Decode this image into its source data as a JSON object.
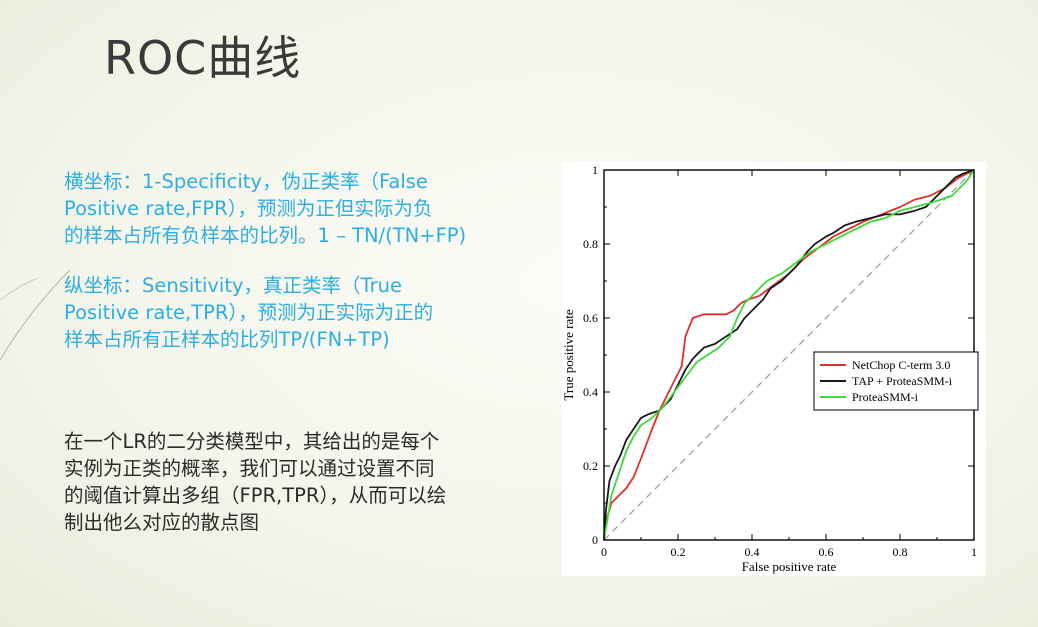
{
  "slide": {
    "title": "ROC曲线",
    "paragraph1": "横坐标：1-Specificity，伪正类率（False Positive rate,FPR），预测为正但实际为负的样本占所有负样本的比例。1 – TN/(TN+FP)",
    "paragraph1_lines": [
      "横坐标：1-Specificity，伪正类率（False",
      "Positive rate,FPR），预测为正但实际为负",
      "的样本占所有负样本的比列。1 – TN/(TN+FP)"
    ],
    "paragraph2_lines": [
      "纵坐标：Sensitivity，真正类率（True",
      "Positive rate,TPR），预测为正实际为正的",
      "样本占所有正样本的比列TP/(FN+TP)"
    ],
    "paragraph3_lines": [
      "在一个LR的二分类模型中，其给出的是每个",
      "实例为正类的概率，我们可以通过设置不同",
      "的阈值计算出多组（FPR,TPR），从而可以绘",
      "制出他么对应的散点图"
    ],
    "colors": {
      "accent_text": "#2eaee0",
      "body_text": "#2b2b2b"
    }
  },
  "chart_data": {
    "type": "line",
    "xlabel": "False positive rate",
    "ylabel": "True positive rate",
    "xlim": [
      0,
      1
    ],
    "ylim": [
      0,
      1
    ],
    "x_ticks": [
      "0",
      "0.2",
      "0.4",
      "0.6",
      "0.8",
      "1"
    ],
    "y_ticks": [
      "0",
      "0.2",
      "0.4",
      "0.6",
      "0.8",
      "1"
    ],
    "grid": false,
    "legend": "center-right",
    "diagonal": {
      "style": "dashed",
      "color": "#a89a9a"
    },
    "series": [
      {
        "name": "NetChop C-term 3.0",
        "color": "#e0302b",
        "points": [
          [
            0,
            0
          ],
          [
            0.005,
            0.05
          ],
          [
            0.02,
            0.1
          ],
          [
            0.04,
            0.12
          ],
          [
            0.06,
            0.14
          ],
          [
            0.08,
            0.17
          ],
          [
            0.1,
            0.22
          ],
          [
            0.13,
            0.3
          ],
          [
            0.15,
            0.35
          ],
          [
            0.17,
            0.39
          ],
          [
            0.19,
            0.43
          ],
          [
            0.21,
            0.47
          ],
          [
            0.22,
            0.55
          ],
          [
            0.24,
            0.6
          ],
          [
            0.27,
            0.61
          ],
          [
            0.3,
            0.61
          ],
          [
            0.33,
            0.61
          ],
          [
            0.35,
            0.62
          ],
          [
            0.37,
            0.64
          ],
          [
            0.39,
            0.65
          ],
          [
            0.42,
            0.66
          ],
          [
            0.46,
            0.69
          ],
          [
            0.5,
            0.72
          ],
          [
            0.54,
            0.76
          ],
          [
            0.58,
            0.79
          ],
          [
            0.62,
            0.82
          ],
          [
            0.66,
            0.84
          ],
          [
            0.7,
            0.86
          ],
          [
            0.75,
            0.88
          ],
          [
            0.8,
            0.9
          ],
          [
            0.84,
            0.92
          ],
          [
            0.88,
            0.93
          ],
          [
            0.92,
            0.95
          ],
          [
            0.96,
            0.98
          ],
          [
            1,
            1
          ]
        ]
      },
      {
        "name": "TAP + ProteaSMM-i",
        "color": "#1a1a1a",
        "points": [
          [
            0,
            0
          ],
          [
            0.005,
            0.08
          ],
          [
            0.015,
            0.16
          ],
          [
            0.03,
            0.2
          ],
          [
            0.045,
            0.23
          ],
          [
            0.06,
            0.27
          ],
          [
            0.08,
            0.3
          ],
          [
            0.1,
            0.33
          ],
          [
            0.12,
            0.34
          ],
          [
            0.15,
            0.35
          ],
          [
            0.18,
            0.38
          ],
          [
            0.2,
            0.42
          ],
          [
            0.22,
            0.46
          ],
          [
            0.24,
            0.49
          ],
          [
            0.27,
            0.52
          ],
          [
            0.3,
            0.53
          ],
          [
            0.33,
            0.55
          ],
          [
            0.36,
            0.57
          ],
          [
            0.38,
            0.6
          ],
          [
            0.4,
            0.62
          ],
          [
            0.43,
            0.65
          ],
          [
            0.45,
            0.68
          ],
          [
            0.48,
            0.7
          ],
          [
            0.5,
            0.72
          ],
          [
            0.52,
            0.74
          ],
          [
            0.55,
            0.78
          ],
          [
            0.57,
            0.8
          ],
          [
            0.6,
            0.82
          ],
          [
            0.62,
            0.83
          ],
          [
            0.65,
            0.85
          ],
          [
            0.68,
            0.86
          ],
          [
            0.72,
            0.87
          ],
          [
            0.76,
            0.88
          ],
          [
            0.8,
            0.88
          ],
          [
            0.84,
            0.89
          ],
          [
            0.87,
            0.9
          ],
          [
            0.89,
            0.92
          ],
          [
            0.91,
            0.94
          ],
          [
            0.93,
            0.96
          ],
          [
            0.95,
            0.98
          ],
          [
            0.97,
            0.99
          ],
          [
            1,
            1
          ]
        ]
      },
      {
        "name": "ProteaSMM-i",
        "color": "#3ed93a",
        "points": [
          [
            0,
            0
          ],
          [
            0.01,
            0.06
          ],
          [
            0.02,
            0.12
          ],
          [
            0.04,
            0.18
          ],
          [
            0.06,
            0.24
          ],
          [
            0.08,
            0.28
          ],
          [
            0.1,
            0.31
          ],
          [
            0.13,
            0.33
          ],
          [
            0.16,
            0.36
          ],
          [
            0.19,
            0.4
          ],
          [
            0.22,
            0.44
          ],
          [
            0.25,
            0.48
          ],
          [
            0.28,
            0.5
          ],
          [
            0.31,
            0.52
          ],
          [
            0.34,
            0.55
          ],
          [
            0.36,
            0.6
          ],
          [
            0.38,
            0.64
          ],
          [
            0.41,
            0.67
          ],
          [
            0.44,
            0.7
          ],
          [
            0.48,
            0.72
          ],
          [
            0.52,
            0.75
          ],
          [
            0.56,
            0.78
          ],
          [
            0.6,
            0.8
          ],
          [
            0.64,
            0.82
          ],
          [
            0.68,
            0.84
          ],
          [
            0.72,
            0.86
          ],
          [
            0.76,
            0.87
          ],
          [
            0.8,
            0.89
          ],
          [
            0.84,
            0.9
          ],
          [
            0.88,
            0.91
          ],
          [
            0.91,
            0.92
          ],
          [
            0.94,
            0.93
          ],
          [
            0.96,
            0.95
          ],
          [
            0.98,
            0.97
          ],
          [
            1,
            1
          ]
        ]
      }
    ]
  }
}
